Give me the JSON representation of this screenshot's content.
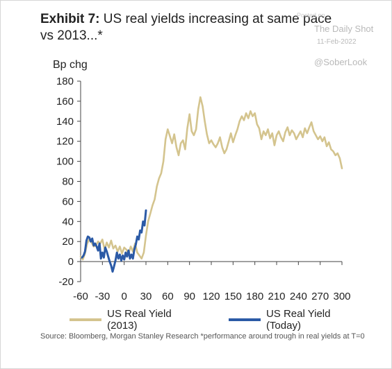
{
  "header": {
    "exhibit": "Exhibit 7:",
    "title": "US real yields increasing at same pace vs 2013...*"
  },
  "watermark": {
    "posted": "Posted on",
    "site": "The Daily Shot",
    "date": "11-Feb-2022",
    "handle": "@SoberLook"
  },
  "source": "Source: Bloomberg, Morgan Stanley Research *performance around trough in real yields at T=0",
  "colors": {
    "series_2013": "#d4c48e",
    "series_today": "#2b5aa6"
  },
  "chart_data": {
    "type": "line",
    "ylabel": "Bp chg",
    "xlim": [
      -60,
      300
    ],
    "ylim": [
      -20,
      180
    ],
    "xticks": [
      -60,
      -30,
      0,
      30,
      60,
      90,
      120,
      150,
      180,
      210,
      240,
      270,
      300
    ],
    "yticks": [
      -20,
      0,
      20,
      40,
      60,
      80,
      100,
      120,
      140,
      160,
      180
    ],
    "legend_position": "bottom",
    "grid": false,
    "series": [
      {
        "name": "US Real Yield (2013)",
        "color": "#d4c48e",
        "x": [
          -60,
          -57,
          -54,
          -51,
          -48,
          -45,
          -42,
          -39,
          -36,
          -33,
          -30,
          -27,
          -24,
          -21,
          -18,
          -15,
          -12,
          -9,
          -6,
          -3,
          0,
          3,
          6,
          9,
          12,
          15,
          18,
          21,
          24,
          27,
          30,
          33,
          36,
          39,
          42,
          45,
          48,
          51,
          54,
          57,
          60,
          63,
          66,
          69,
          72,
          75,
          78,
          81,
          84,
          87,
          90,
          93,
          96,
          99,
          102,
          105,
          108,
          111,
          114,
          117,
          120,
          123,
          126,
          129,
          132,
          135,
          138,
          141,
          144,
          147,
          150,
          153,
          156,
          159,
          162,
          165,
          168,
          171,
          174,
          177,
          180,
          183,
          186,
          189,
          192,
          195,
          198,
          201,
          204,
          207,
          210,
          213,
          216,
          219,
          222,
          225,
          228,
          231,
          234,
          237,
          240,
          243,
          246,
          249,
          252,
          255,
          258,
          261,
          264,
          267,
          270,
          273,
          276,
          279,
          282,
          285,
          288,
          291,
          294,
          297,
          300
        ],
        "values": [
          5,
          2,
          8,
          18,
          22,
          19,
          15,
          16,
          20,
          18,
          22,
          12,
          19,
          14,
          21,
          13,
          16,
          10,
          15,
          8,
          14,
          12,
          8,
          15,
          10,
          18,
          9,
          6,
          3,
          9,
          26,
          40,
          48,
          56,
          62,
          75,
          83,
          88,
          100,
          122,
          132,
          125,
          118,
          127,
          114,
          106,
          118,
          121,
          112,
          133,
          147,
          130,
          126,
          132,
          152,
          164,
          155,
          140,
          127,
          118,
          121,
          117,
          114,
          118,
          124,
          114,
          108,
          112,
          120,
          128,
          119,
          126,
          132,
          140,
          145,
          141,
          148,
          143,
          150,
          145,
          148,
          137,
          133,
          122,
          130,
          126,
          132,
          123,
          128,
          116,
          126,
          130,
          124,
          120,
          129,
          134,
          126,
          131,
          128,
          122,
          126,
          130,
          124,
          133,
          128,
          134,
          139,
          130,
          126,
          122,
          125,
          120,
          124,
          115,
          119,
          112,
          110,
          106,
          108,
          103,
          93
        ]
      },
      {
        "name": "US Real Yield (Today)",
        "color": "#2b5aa6",
        "x": [
          -58,
          -56,
          -54,
          -52,
          -50,
          -48,
          -46,
          -44,
          -42,
          -40,
          -38,
          -36,
          -34,
          -32,
          -30,
          -28,
          -26,
          -24,
          -22,
          -20,
          -18,
          -16,
          -14,
          -12,
          -10,
          -8,
          -6,
          -4,
          -2,
          0,
          2,
          4,
          6,
          8,
          10,
          12,
          14,
          16,
          18,
          20,
          22,
          24,
          26,
          28,
          30
        ],
        "values": [
          4,
          6,
          10,
          21,
          25,
          24,
          20,
          23,
          16,
          18,
          15,
          11,
          18,
          3,
          9,
          4,
          14,
          10,
          5,
          0,
          -4,
          -10,
          -5,
          1,
          9,
          3,
          7,
          1,
          6,
          2,
          9,
          5,
          11,
          3,
          7,
          3,
          12,
          17,
          25,
          22,
          31,
          29,
          40,
          36,
          51
        ]
      }
    ]
  }
}
